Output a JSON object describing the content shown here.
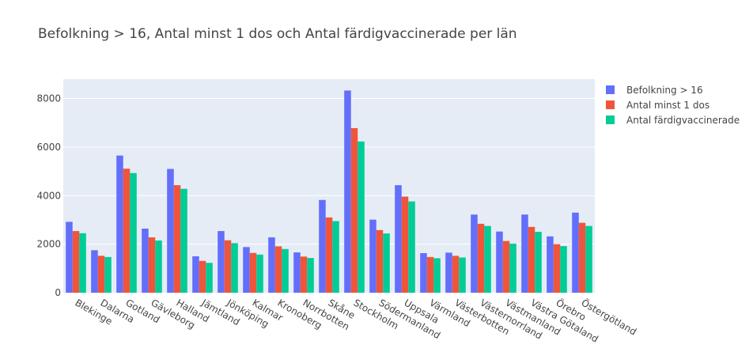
{
  "chart_data": {
    "type": "bar",
    "title": "Befolkning > 16, Antal minst 1 dos och Antal färdigvaccinerade per län",
    "xlabel": "",
    "ylabel": "",
    "ylim": [
      0,
      8800
    ],
    "yticks": [
      0,
      2000,
      4000,
      6000,
      8000
    ],
    "grid": true,
    "legend_position": "top-right",
    "categories": [
      "Blekinge",
      "Dalarna",
      "Gotland",
      "Gävleborg",
      "Halland",
      "Jämtland",
      "Jönköping",
      "Kalmar",
      "Kronoberg",
      "Norrbotten",
      "Skåne",
      "Stockholm",
      "Södermanland",
      "Uppsala",
      "Värmland",
      "Västerbotten",
      "Västernorrland",
      "Västmanland",
      "Västra Götaland",
      "Örebro",
      "Östergötland"
    ],
    "series": [
      {
        "name": "Befolkning > 16",
        "color": "#636efa",
        "values": [
          2920,
          1750,
          5650,
          2640,
          5100,
          1500,
          2540,
          1880,
          2280,
          1660,
          3820,
          8330,
          3010,
          4430,
          1630,
          1650,
          3220,
          2520,
          3220,
          2320,
          3300
        ]
      },
      {
        "name": "Antal minst 1 dos",
        "color": "#ef553b",
        "values": [
          2540,
          1520,
          5110,
          2280,
          4430,
          1310,
          2160,
          1640,
          1910,
          1490,
          3100,
          6780,
          2580,
          3960,
          1470,
          1520,
          2840,
          2130,
          2710,
          2000,
          2880
        ]
      },
      {
        "name": "Antal färdigvaccinerade",
        "color": "#00cc96",
        "values": [
          2450,
          1470,
          4930,
          2150,
          4280,
          1230,
          2040,
          1570,
          1800,
          1430,
          2950,
          6230,
          2440,
          3760,
          1420,
          1450,
          2750,
          2020,
          2510,
          1920,
          2750
        ]
      }
    ]
  }
}
